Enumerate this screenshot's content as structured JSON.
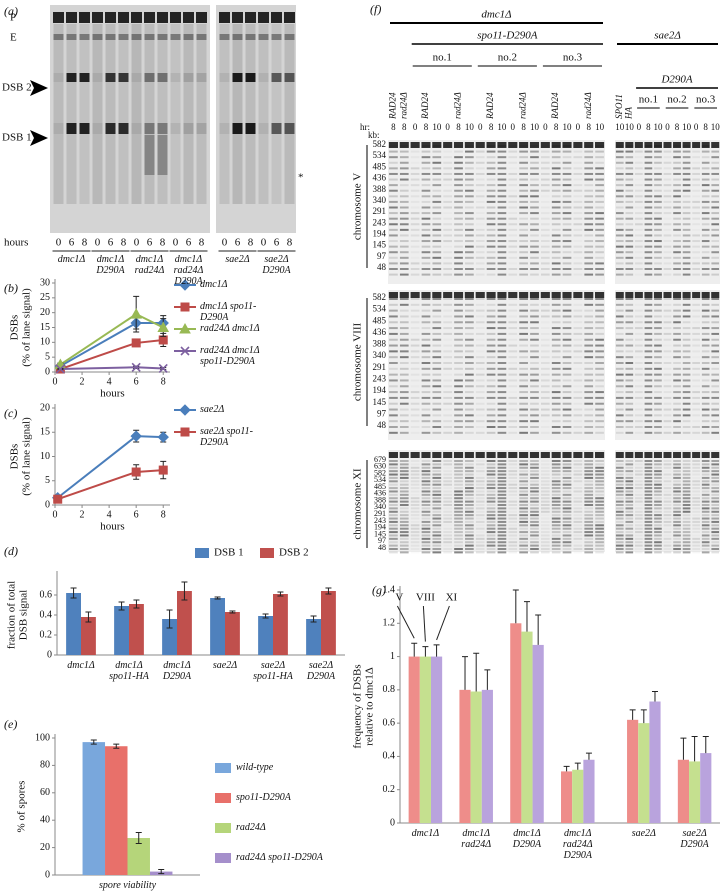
{
  "gel_a": {
    "label": "(a)",
    "markers": [
      "P",
      "E",
      "DSB 2",
      "DSB 1"
    ],
    "asterisk": "*",
    "hours_label": "hours",
    "groups": [
      {
        "strain": "dmc1Δ",
        "hours": [
          0,
          6,
          8
        ]
      },
      {
        "strain": "dmc1Δ D290A",
        "hours": [
          0,
          6,
          8
        ]
      },
      {
        "strain": "dmc1Δ rad24Δ",
        "hours": [
          0,
          6,
          8
        ]
      },
      {
        "strain": "dmc1Δ rad24Δ D290A",
        "hours": [
          0,
          6,
          8
        ]
      },
      {
        "strain": "sae2Δ",
        "hours": [
          0,
          6,
          8
        ]
      },
      {
        "strain": "sae2Δ D290A",
        "hours": [
          0,
          6,
          8
        ]
      }
    ]
  },
  "gel_f": {
    "label": "(f)",
    "hr_label": "hr:",
    "kb_label": "kb:",
    "left": {
      "title": "dmc1Δ",
      "sub": "spo11-D290A",
      "lanes": [
        {
          "genotype": "RAD24",
          "hours": [
            8
          ]
        },
        {
          "genotype": "rad24Δ",
          "hours": [
            8
          ]
        }
      ],
      "clones": [
        {
          "name": "no.1",
          "lanes": [
            {
              "genotype": "RAD24",
              "hours": [
                0,
                8,
                10
              ]
            },
            {
              "genotype": "rad24Δ",
              "hours": [
                0,
                8,
                10
              ]
            }
          ]
        },
        {
          "name": "no.2",
          "lanes": [
            {
              "genotype": "RAD24",
              "hours": [
                0,
                8,
                10
              ]
            },
            {
              "genotype": "rad24Δ",
              "hours": [
                0,
                8,
                10
              ]
            }
          ]
        },
        {
          "name": "no.3",
          "lanes": [
            {
              "genotype": "RAD24",
              "hours": [
                0,
                8,
                10
              ]
            },
            {
              "genotype": "rad24Δ",
              "hours": [
                0,
                8,
                10
              ]
            }
          ]
        }
      ]
    },
    "right": {
      "title": "sae2Δ",
      "sub": "D290A",
      "lanes": [
        {
          "genotype": "SPO11",
          "hours": [
            10
          ]
        },
        {
          "genotype": "HA",
          "hours": [
            10
          ]
        }
      ],
      "clones": [
        {
          "name": "no.1",
          "hours": [
            0,
            8,
            10
          ]
        },
        {
          "name": "no.2",
          "hours": [
            0,
            8,
            10
          ]
        },
        {
          "name": "no.3",
          "hours": [
            0,
            8,
            10
          ]
        }
      ]
    },
    "chromosomes": [
      {
        "name": "chromosome V",
        "kb": [
          582,
          534,
          485,
          436,
          388,
          340,
          291,
          243,
          194,
          145,
          97,
          48
        ]
      },
      {
        "name": "chromosome VIII",
        "kb": [
          582,
          534,
          485,
          436,
          388,
          340,
          291,
          243,
          194,
          145,
          97,
          48
        ]
      },
      {
        "name": "chromosome XI",
        "kb": [
          679,
          630,
          582,
          534,
          485,
          436,
          388,
          340,
          291,
          243,
          194,
          145,
          97,
          48
        ]
      }
    ]
  },
  "chart_data": [
    {
      "type": "line",
      "label": "(b)",
      "x": [
        0.4,
        6,
        8
      ],
      "xlim": [
        0,
        8.5
      ],
      "xticks": [
        0,
        2,
        4,
        6,
        8
      ],
      "ylim": [
        0,
        30
      ],
      "yticks": [
        0,
        5,
        10,
        15,
        20,
        25,
        30
      ],
      "xlabel": "hours",
      "ylabel": [
        "DSBs",
        "(% of lane signal)"
      ],
      "legend": "right",
      "series": [
        {
          "name": "dmc1Δ",
          "color": "#4a7ebb",
          "marker": "diamond",
          "values": [
            2,
            16.5,
            16.5
          ],
          "errors": [
            0.5,
            2,
            2.5
          ]
        },
        {
          "name": "dmc1Δ spo11-D290A",
          "color": "#be4b48",
          "marker": "square",
          "values": [
            1,
            9.8,
            10.8
          ],
          "errors": [
            0.3,
            1.2,
            2.2
          ]
        },
        {
          "name": "rad24Δ dmc1Δ",
          "color": "#98b954",
          "marker": "triangle",
          "values": [
            2.5,
            19.5,
            15
          ],
          "errors": [
            0.5,
            6,
            3
          ]
        },
        {
          "name": "rad24Δ dmc1Δ spo11-D290A",
          "color": "#7d60a0",
          "marker": "x",
          "values": [
            1,
            1.6,
            1.2
          ],
          "errors": [
            0.2,
            0.4,
            0.3
          ]
        }
      ]
    },
    {
      "type": "line",
      "label": "(c)",
      "x": [
        0.2,
        6,
        8
      ],
      "xlim": [
        0,
        8.5
      ],
      "xticks": [
        0,
        2,
        4,
        6,
        8
      ],
      "ylim": [
        0,
        20
      ],
      "yticks": [
        0,
        5,
        10,
        15,
        20
      ],
      "xlabel": "hours",
      "ylabel": [
        "DSBs",
        "(% of lane signal)"
      ],
      "legend": "right",
      "series": [
        {
          "name": "sae2Δ",
          "color": "#4a7ebb",
          "marker": "diamond",
          "values": [
            1.5,
            14.2,
            14
          ],
          "errors": [
            0.3,
            1.2,
            1
          ]
        },
        {
          "name": "sae2Δ spo11-D290A",
          "color": "#be4b48",
          "marker": "square",
          "values": [
            1.2,
            6.8,
            7.2
          ],
          "errors": [
            0.3,
            1.5,
            1.8
          ]
        }
      ]
    },
    {
      "type": "bar",
      "label": "(d)",
      "categories": [
        "dmc1Δ",
        "dmc1Δ spo11-HA",
        "dmc1Δ D290A",
        "sae2Δ",
        "sae2Δ spo11-HA",
        "sae2Δ D290A"
      ],
      "ylim": [
        0,
        0.8
      ],
      "yticks": [
        0,
        0.2,
        0.4,
        0.6
      ],
      "ylabel": [
        "fraction of total",
        "DSB signal"
      ],
      "legend": "top-right",
      "series": [
        {
          "name": "DSB 1",
          "color": "#4f81bd",
          "values": [
            0.62,
            0.49,
            0.36,
            0.57,
            0.39,
            0.36
          ],
          "errors": [
            0.05,
            0.04,
            0.09,
            0.01,
            0.02,
            0.03
          ]
        },
        {
          "name": "DSB 2",
          "color": "#c0504d",
          "values": [
            0.38,
            0.51,
            0.64,
            0.43,
            0.61,
            0.64
          ],
          "errors": [
            0.05,
            0.04,
            0.09,
            0.01,
            0.02,
            0.03
          ]
        }
      ]
    },
    {
      "type": "bar",
      "label": "(e)",
      "categories": [
        "spore viability"
      ],
      "ylim": [
        0,
        100
      ],
      "yticks": [
        0,
        20,
        40,
        60,
        80,
        100
      ],
      "ylabel": [
        "% of spores"
      ],
      "legend": "right",
      "series": [
        {
          "name": "wild-type",
          "color": "#79a7dc",
          "values": [
            97
          ],
          "errors": [
            1.5
          ]
        },
        {
          "name": "spo11-D290A",
          "color": "#e8706a",
          "values": [
            94
          ],
          "errors": [
            1.5
          ]
        },
        {
          "name": "rad24Δ",
          "color": "#b5d57a",
          "values": [
            27
          ],
          "errors": [
            4
          ]
        },
        {
          "name": "rad24Δ spo11-D290A",
          "color": "#a58fcb",
          "values": [
            2.5
          ],
          "errors": [
            1.5
          ]
        }
      ]
    },
    {
      "type": "bar",
      "label": "(g)",
      "categories": [
        "dmc1Δ",
        "dmc1Δ rad24Δ",
        "dmc1Δ D290A",
        "dmc1Δ rad24Δ D290A",
        "sae2Δ",
        "sae2Δ D290A"
      ],
      "ylim": [
        0,
        1.4
      ],
      "yticks": [
        0,
        0.2,
        0.4,
        0.6,
        0.8,
        1.0,
        1.2,
        1.4
      ],
      "ylabel": [
        "frequency of DSBs",
        "relative to dmc1Δ"
      ],
      "legend": "top-left",
      "series": [
        {
          "name": "V",
          "color": "#ee8d8a",
          "values": [
            1.0,
            0.8,
            1.2,
            0.31,
            0.62,
            0.38
          ],
          "errors": [
            0.08,
            0.2,
            0.2,
            0.03,
            0.06,
            0.13
          ]
        },
        {
          "name": "VIII",
          "color": "#c5e08f",
          "values": [
            1.0,
            0.79,
            1.15,
            0.32,
            0.6,
            0.37
          ],
          "errors": [
            0.06,
            0.23,
            0.18,
            0.04,
            0.08,
            0.15
          ]
        },
        {
          "name": "XI",
          "color": "#b9a3dd",
          "values": [
            1.0,
            0.8,
            1.07,
            0.38,
            0.73,
            0.42
          ],
          "errors": [
            0.07,
            0.12,
            0.18,
            0.04,
            0.06,
            0.1
          ]
        }
      ]
    }
  ]
}
